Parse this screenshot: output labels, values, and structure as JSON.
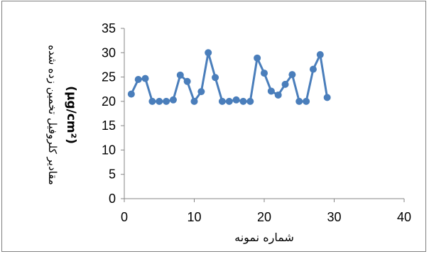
{
  "chart_data": {
    "type": "line",
    "title": "",
    "xlabel": "شماره نمونه",
    "ylabel": "مقادیر کلروفیل تخمین زده شده (µg/cm²)",
    "ylabel_line1": "مقادیر کلروفیل تخمین زده شده",
    "ylabel_line2": "(µg/cm²)",
    "xlim": [
      0,
      40
    ],
    "ylim": [
      0,
      35
    ],
    "xticks": [
      0,
      10,
      20,
      30,
      40
    ],
    "yticks": [
      0,
      5,
      10,
      15,
      20,
      25,
      30,
      35
    ],
    "grid": false,
    "legend": "none",
    "series": [
      {
        "color": "#4a7ebb",
        "x": [
          1,
          2,
          3,
          4,
          5,
          6,
          7,
          8,
          9,
          10,
          11,
          12,
          13,
          14,
          15,
          16,
          17,
          18,
          19,
          20,
          21,
          22,
          23,
          24,
          25,
          26,
          27,
          28,
          29
        ],
        "values": [
          21.5,
          24.5,
          24.7,
          20,
          20,
          20,
          20.3,
          25.4,
          24.1,
          20,
          22,
          30,
          24.9,
          20,
          20,
          20.3,
          20,
          20,
          28.9,
          25.8,
          22.1,
          21.3,
          23.5,
          25.5,
          20,
          20,
          26.6,
          29.6,
          20.8
        ]
      }
    ]
  }
}
